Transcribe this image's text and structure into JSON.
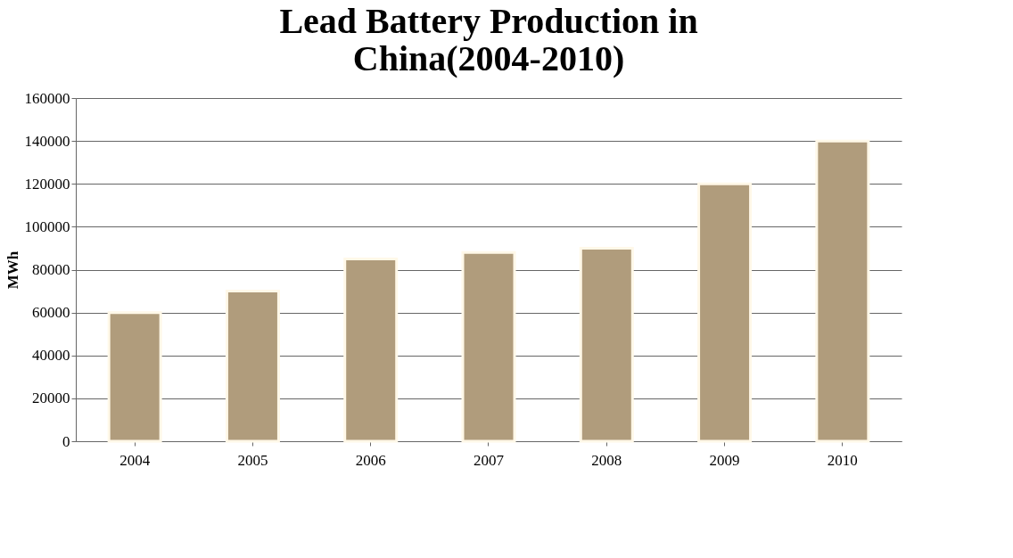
{
  "chart_data": {
    "type": "bar",
    "title": "Lead Battery Production in China(2004-2010)",
    "ylabel": "MWh",
    "categories": [
      "2004",
      "2005",
      "2006",
      "2007",
      "2008",
      "2009",
      "2010"
    ],
    "values": [
      60000,
      70000,
      85000,
      88000,
      90000,
      120000,
      140000
    ],
    "color": "#b09c7c",
    "ylim": [
      0,
      160000
    ],
    "yticks": [
      0,
      20000,
      40000,
      60000,
      80000,
      100000,
      120000,
      140000,
      160000
    ],
    "grid": "y"
  }
}
